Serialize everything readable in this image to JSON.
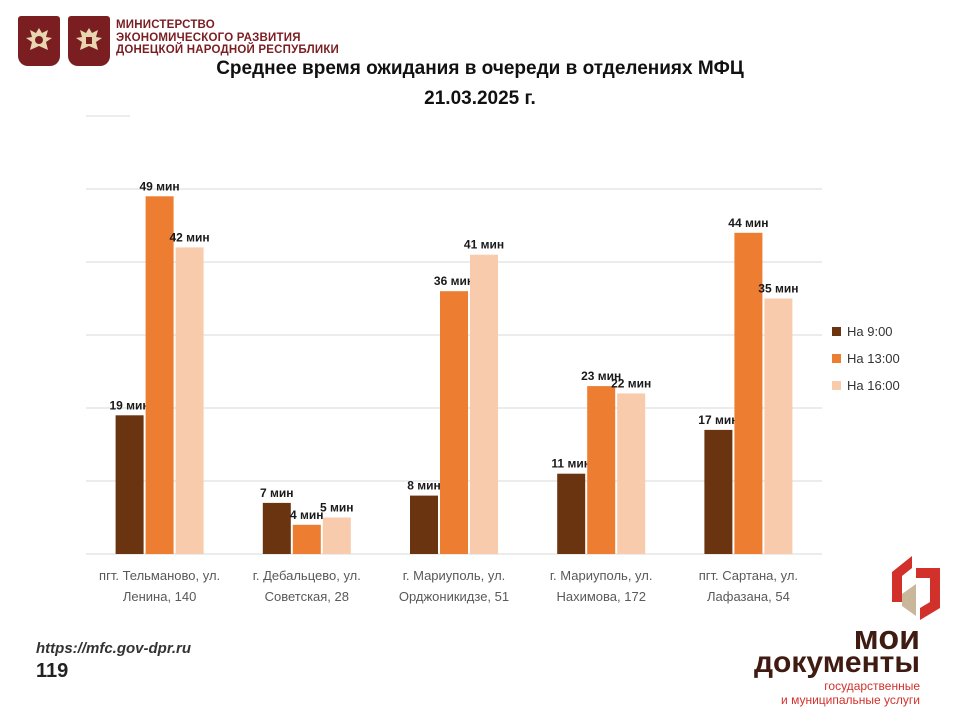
{
  "header": {
    "ministry_lines": [
      "МИНИСТЕРСТВО",
      "ЭКОНОМИЧЕСКОГО РАЗВИТИЯ",
      "ДОНЕЦКОЙ НАРОДНОЙ РЕСПУБЛИКИ"
    ]
  },
  "colors": {
    "series_9": "#6b3410",
    "series_13": "#ed7d31",
    "series_16": "#f8cbad",
    "brand_dark": "#3f1b12",
    "brand_red": "#d2312b",
    "ministry": "#7a1e22"
  },
  "chart_data": {
    "type": "bar",
    "title": "Среднее время ожидания в очереди в отделениях МФЦ",
    "subtitle": "21.03.2025   г.",
    "categories": [
      [
        "пгт. Тельманово,  ул.",
        "Ленина, 140"
      ],
      [
        "г. Дебальцево, ул.",
        "Советская, 28"
      ],
      [
        "г. Мариуполь, ул.",
        "Орджоникидзе, 51"
      ],
      [
        "г. Мариуполь, ул.",
        "Нахимова, 172"
      ],
      [
        "пгт. Сартана, ул.",
        "Лафазана, 54"
      ]
    ],
    "series": [
      {
        "name": "На 9:00",
        "values": [
          19,
          7,
          8,
          11,
          17
        ],
        "color": "#6b3410"
      },
      {
        "name": "На 13:00",
        "values": [
          49,
          4,
          36,
          23,
          44
        ],
        "color": "#ed7d31"
      },
      {
        "name": "На 16:00",
        "values": [
          42,
          5,
          41,
          22,
          35
        ],
        "color": "#f8cbad"
      }
    ],
    "value_suffix": " мин",
    "ylim": [
      0,
      60
    ],
    "grid": true,
    "legend_position": "right"
  },
  "footer": {
    "url": "https://mfc.gov-dpr.ru",
    "page_number": "119",
    "logo_lines": [
      "мои",
      "документы",
      "государственные",
      "и муниципальные услуги"
    ]
  }
}
